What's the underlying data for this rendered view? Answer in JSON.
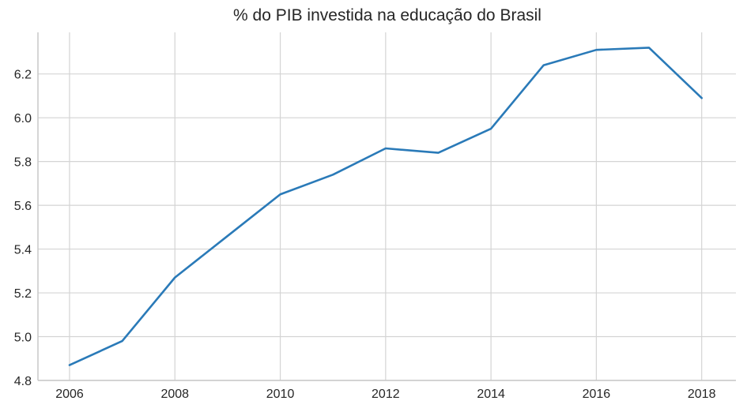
{
  "chart_data": {
    "type": "line",
    "title": "% do PIB investida na educação do Brasil",
    "xlabel": "",
    "ylabel": "",
    "x": [
      2006,
      2007,
      2008,
      2009,
      2010,
      2011,
      2012,
      2013,
      2014,
      2015,
      2016,
      2017,
      2018
    ],
    "series": [
      {
        "values": [
          4.87,
          4.98,
          5.27,
          5.46,
          5.65,
          5.74,
          5.86,
          5.84,
          5.95,
          6.24,
          6.31,
          6.32,
          6.09
        ],
        "color": "#2a7ab8"
      }
    ],
    "xlim": [
      2005.4,
      2018.65
    ],
    "ylim": [
      4.8,
      6.39
    ],
    "xticks": [
      2006,
      2008,
      2010,
      2012,
      2014,
      2016,
      2018
    ],
    "xtick_labels": [
      "2006",
      "2008",
      "2010",
      "2012",
      "2014",
      "2016",
      "2018"
    ],
    "yticks": [
      4.8,
      5.0,
      5.2,
      5.4,
      5.6,
      5.8,
      6.0,
      6.2
    ],
    "ytick_labels": [
      "4.8",
      "5.0",
      "5.2",
      "5.4",
      "5.6",
      "5.8",
      "6.0",
      "6.2"
    ],
    "grid": true,
    "legend": "none",
    "colors": {
      "grid": "#d4d4d4",
      "axis": "#c8c8c8",
      "tick_text": "#262626"
    }
  }
}
